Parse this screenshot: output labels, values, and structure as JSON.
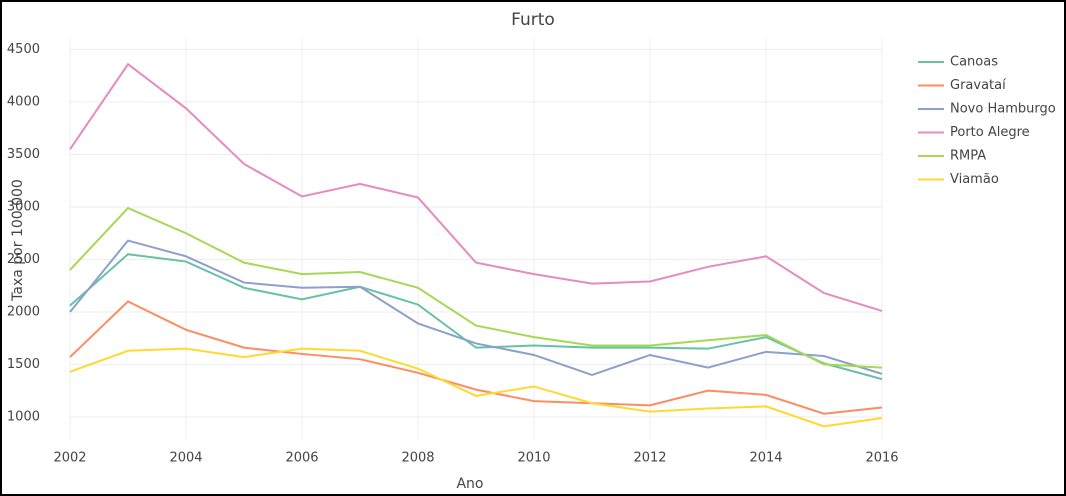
{
  "chart_data": {
    "type": "line",
    "title": "Furto",
    "x_label": "Ano",
    "y_label": "Taxa por 100.000",
    "x": [
      2002,
      2003,
      2004,
      2005,
      2006,
      2007,
      2008,
      2009,
      2010,
      2011,
      2012,
      2013,
      2014,
      2015,
      2016
    ],
    "series": [
      {
        "name": "Canoas",
        "color": "#66c2a5",
        "values": [
          2060,
          2550,
          2480,
          2230,
          2120,
          2240,
          2070,
          1660,
          1680,
          1660,
          1660,
          1650,
          1760,
          1510,
          1360
        ]
      },
      {
        "name": "Gravataí",
        "color": "#fc8d62",
        "values": [
          1570,
          2100,
          1830,
          1660,
          1600,
          1550,
          1420,
          1260,
          1150,
          1130,
          1110,
          1250,
          1210,
          1030,
          1090
        ]
      },
      {
        "name": "Novo Hamburgo",
        "color": "#8da0cb",
        "values": [
          2000,
          2680,
          2530,
          2280,
          2230,
          2240,
          1890,
          1700,
          1590,
          1400,
          1590,
          1470,
          1620,
          1580,
          1410
        ]
      },
      {
        "name": "Porto Alegre",
        "color": "#e78ac3",
        "values": [
          3550,
          4360,
          3940,
          3410,
          3100,
          3220,
          3090,
          2470,
          2360,
          2270,
          2290,
          2430,
          2530,
          2180,
          2010
        ]
      },
      {
        "name": "RMPA",
        "color": "#a6d854",
        "values": [
          2400,
          2990,
          2750,
          2470,
          2360,
          2380,
          2230,
          1870,
          1760,
          1680,
          1680,
          1730,
          1780,
          1500,
          1470
        ]
      },
      {
        "name": "Viamão",
        "color": "#ffd92f",
        "values": [
          1430,
          1630,
          1650,
          1570,
          1650,
          1630,
          1460,
          1200,
          1290,
          1130,
          1050,
          1080,
          1100,
          910,
          990
        ]
      }
    ],
    "xlim": [
      2002,
      2016
    ],
    "xticks": [
      2002,
      2004,
      2006,
      2008,
      2010,
      2012,
      2014,
      2016
    ],
    "ylim": [
      780,
      4610
    ],
    "yticks": [
      1000,
      1500,
      2000,
      2500,
      3000,
      3500,
      4000,
      4500
    ],
    "grid": true
  }
}
